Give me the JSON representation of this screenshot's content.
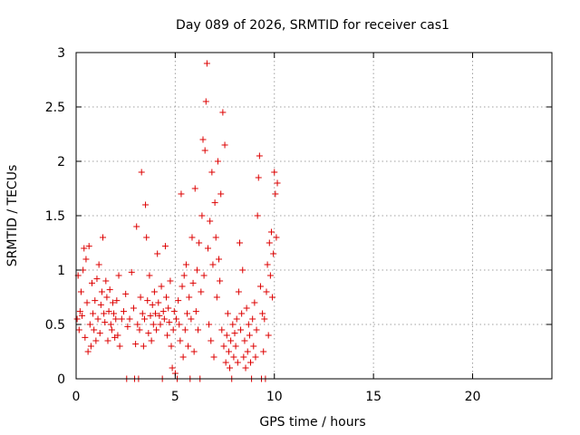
{
  "chart_data": {
    "type": "scatter",
    "title": "Day 089 of 2026, SRMTID for receiver cas1",
    "xlabel": "GPS time / hours",
    "ylabel": "SRMTID / TECUs",
    "xlim": [
      0,
      24
    ],
    "ylim": [
      0,
      3
    ],
    "xticks": [
      0,
      5,
      10,
      15,
      20
    ],
    "xtick_labels": [
      "0",
      "5",
      "10",
      "15",
      "20"
    ],
    "yticks": [
      0,
      0.5,
      1,
      1.5,
      2,
      2.5,
      3
    ],
    "ytick_labels": [
      "0",
      "0.5",
      "1",
      "1.5",
      "2",
      "2.5",
      "3"
    ],
    "grid": true,
    "marker": "+",
    "series": [
      {
        "name": "SRMTID",
        "color": "#dd0000",
        "points": [
          [
            0.05,
            0.55
          ],
          [
            0.1,
            0.95
          ],
          [
            0.15,
            0.45
          ],
          [
            0.2,
            0.62
          ],
          [
            0.25,
            0.8
          ],
          [
            0.3,
            0.58
          ],
          [
            0.35,
            1.0
          ],
          [
            0.4,
            1.2
          ],
          [
            0.45,
            0.38
          ],
          [
            0.5,
            1.1
          ],
          [
            0.55,
            0.7
          ],
          [
            0.6,
            0.25
          ],
          [
            0.65,
            1.22
          ],
          [
            0.7,
            0.5
          ],
          [
            0.75,
            0.3
          ],
          [
            0.8,
            0.88
          ],
          [
            0.85,
            0.6
          ],
          [
            0.9,
            0.45
          ],
          [
            0.95,
            0.72
          ],
          [
            1.0,
            0.35
          ],
          [
            1.05,
            0.92
          ],
          [
            1.1,
            0.55
          ],
          [
            1.15,
            1.05
          ],
          [
            1.2,
            0.42
          ],
          [
            1.25,
            0.68
          ],
          [
            1.3,
            0.8
          ],
          [
            1.35,
            1.3
          ],
          [
            1.4,
            0.6
          ],
          [
            1.45,
            0.52
          ],
          [
            1.5,
            0.9
          ],
          [
            1.55,
            0.75
          ],
          [
            1.6,
            0.35
          ],
          [
            1.65,
            0.62
          ],
          [
            1.7,
            0.82
          ],
          [
            1.75,
            0.5
          ],
          [
            1.8,
            0.45
          ],
          [
            1.85,
            0.7
          ],
          [
            1.9,
            0.6
          ],
          [
            1.95,
            0.38
          ],
          [
            2.0,
            0.55
          ],
          [
            2.05,
            0.72
          ],
          [
            2.1,
            0.4
          ],
          [
            2.15,
            0.95
          ],
          [
            2.2,
            0.3
          ],
          [
            2.3,
            0.55
          ],
          [
            2.4,
            0.62
          ],
          [
            2.5,
            0.78
          ],
          [
            2.55,
            0.0
          ],
          [
            2.6,
            0.48
          ],
          [
            2.7,
            0.55
          ],
          [
            2.8,
            0.98
          ],
          [
            2.9,
            0.65
          ],
          [
            2.95,
            0.0
          ],
          [
            3.0,
            0.32
          ],
          [
            3.05,
            1.4
          ],
          [
            3.1,
            0.5
          ],
          [
            3.15,
            0.0
          ],
          [
            3.2,
            0.45
          ],
          [
            3.25,
            0.75
          ],
          [
            3.3,
            1.9
          ],
          [
            3.35,
            0.6
          ],
          [
            3.4,
            0.3
          ],
          [
            3.45,
            0.55
          ],
          [
            3.5,
            1.6
          ],
          [
            3.55,
            1.3
          ],
          [
            3.6,
            0.72
          ],
          [
            3.65,
            0.42
          ],
          [
            3.7,
            0.95
          ],
          [
            3.75,
            0.58
          ],
          [
            3.8,
            0.35
          ],
          [
            3.85,
            0.68
          ],
          [
            3.9,
            0.5
          ],
          [
            3.95,
            0.8
          ],
          [
            4.0,
            0.6
          ],
          [
            4.05,
            0.45
          ],
          [
            4.1,
            1.15
          ],
          [
            4.15,
            0.7
          ],
          [
            4.2,
            0.58
          ],
          [
            4.25,
            0.5
          ],
          [
            4.3,
            0.85
          ],
          [
            4.35,
            0.0
          ],
          [
            4.4,
            0.62
          ],
          [
            4.45,
            0.55
          ],
          [
            4.5,
            1.22
          ],
          [
            4.55,
            0.75
          ],
          [
            4.6,
            0.4
          ],
          [
            4.65,
            0.65
          ],
          [
            4.7,
            0.52
          ],
          [
            4.75,
            0.9
          ],
          [
            4.8,
            0.3
          ],
          [
            4.85,
            0.1
          ],
          [
            4.9,
            0.45
          ],
          [
            4.95,
            0.62
          ],
          [
            5.0,
            0.05
          ],
          [
            5.05,
            0.55
          ],
          [
            5.1,
            0.0
          ],
          [
            5.15,
            0.72
          ],
          [
            5.2,
            0.5
          ],
          [
            5.25,
            0.35
          ],
          [
            5.3,
            1.7
          ],
          [
            5.35,
            0.85
          ],
          [
            5.4,
            0.2
          ],
          [
            5.45,
            0.95
          ],
          [
            5.5,
            0.45
          ],
          [
            5.55,
            1.05
          ],
          [
            5.6,
            0.6
          ],
          [
            5.65,
            0.3
          ],
          [
            5.7,
            0.75
          ],
          [
            5.75,
            0.0
          ],
          [
            5.8,
            0.55
          ],
          [
            5.85,
            1.3
          ],
          [
            5.9,
            0.88
          ],
          [
            5.95,
            0.25
          ],
          [
            6.0,
            1.75
          ],
          [
            6.05,
            0.62
          ],
          [
            6.1,
            1.0
          ],
          [
            6.15,
            0.45
          ],
          [
            6.2,
            1.25
          ],
          [
            6.25,
            0.0
          ],
          [
            6.3,
            0.8
          ],
          [
            6.35,
            1.5
          ],
          [
            6.4,
            2.2
          ],
          [
            6.45,
            0.95
          ],
          [
            6.5,
            2.1
          ],
          [
            6.55,
            2.55
          ],
          [
            6.6,
            2.9
          ],
          [
            6.65,
            1.2
          ],
          [
            6.7,
            0.5
          ],
          [
            6.75,
            1.45
          ],
          [
            6.8,
            0.35
          ],
          [
            6.85,
            1.9
          ],
          [
            6.9,
            1.05
          ],
          [
            6.95,
            0.2
          ],
          [
            7.0,
            1.62
          ],
          [
            7.05,
            1.3
          ],
          [
            7.1,
            0.75
          ],
          [
            7.15,
            2.0
          ],
          [
            7.2,
            1.1
          ],
          [
            7.25,
            0.9
          ],
          [
            7.3,
            1.7
          ],
          [
            7.35,
            0.45
          ],
          [
            7.4,
            2.45
          ],
          [
            7.45,
            0.3
          ],
          [
            7.5,
            2.15
          ],
          [
            7.55,
            0.15
          ],
          [
            7.6,
            0.4
          ],
          [
            7.65,
            0.6
          ],
          [
            7.7,
            0.25
          ],
          [
            7.75,
            0.1
          ],
          [
            7.8,
            0.35
          ],
          [
            7.85,
            0.0
          ],
          [
            7.9,
            0.5
          ],
          [
            7.95,
            0.2
          ],
          [
            8.0,
            0.42
          ],
          [
            8.05,
            0.3
          ],
          [
            8.1,
            0.55
          ],
          [
            8.15,
            0.15
          ],
          [
            8.2,
            0.8
          ],
          [
            8.25,
            1.25
          ],
          [
            8.3,
            0.45
          ],
          [
            8.35,
            0.6
          ],
          [
            8.4,
            1.0
          ],
          [
            8.45,
            0.2
          ],
          [
            8.5,
            0.35
          ],
          [
            8.55,
            0.1
          ],
          [
            8.6,
            0.65
          ],
          [
            8.65,
            0.25
          ],
          [
            8.7,
            0.5
          ],
          [
            8.75,
            0.4
          ],
          [
            8.8,
            0.15
          ],
          [
            8.85,
            0.0
          ],
          [
            8.9,
            0.55
          ],
          [
            8.95,
            0.3
          ],
          [
            9.0,
            0.7
          ],
          [
            9.05,
            0.2
          ],
          [
            9.1,
            0.45
          ],
          [
            9.15,
            1.5
          ],
          [
            9.2,
            1.85
          ],
          [
            9.25,
            2.05
          ],
          [
            9.3,
            0.85
          ],
          [
            9.35,
            0.0
          ],
          [
            9.4,
            0.6
          ],
          [
            9.45,
            0.25
          ],
          [
            9.5,
            0.55
          ],
          [
            9.55,
            0.0
          ],
          [
            9.6,
            0.8
          ],
          [
            9.65,
            1.05
          ],
          [
            9.7,
            0.4
          ],
          [
            9.75,
            1.25
          ],
          [
            9.8,
            0.95
          ],
          [
            9.85,
            1.35
          ],
          [
            9.9,
            0.75
          ],
          [
            9.95,
            1.15
          ],
          [
            10.0,
            1.9
          ],
          [
            10.05,
            1.7
          ],
          [
            10.1,
            1.3
          ],
          [
            10.15,
            1.8
          ]
        ]
      }
    ]
  }
}
